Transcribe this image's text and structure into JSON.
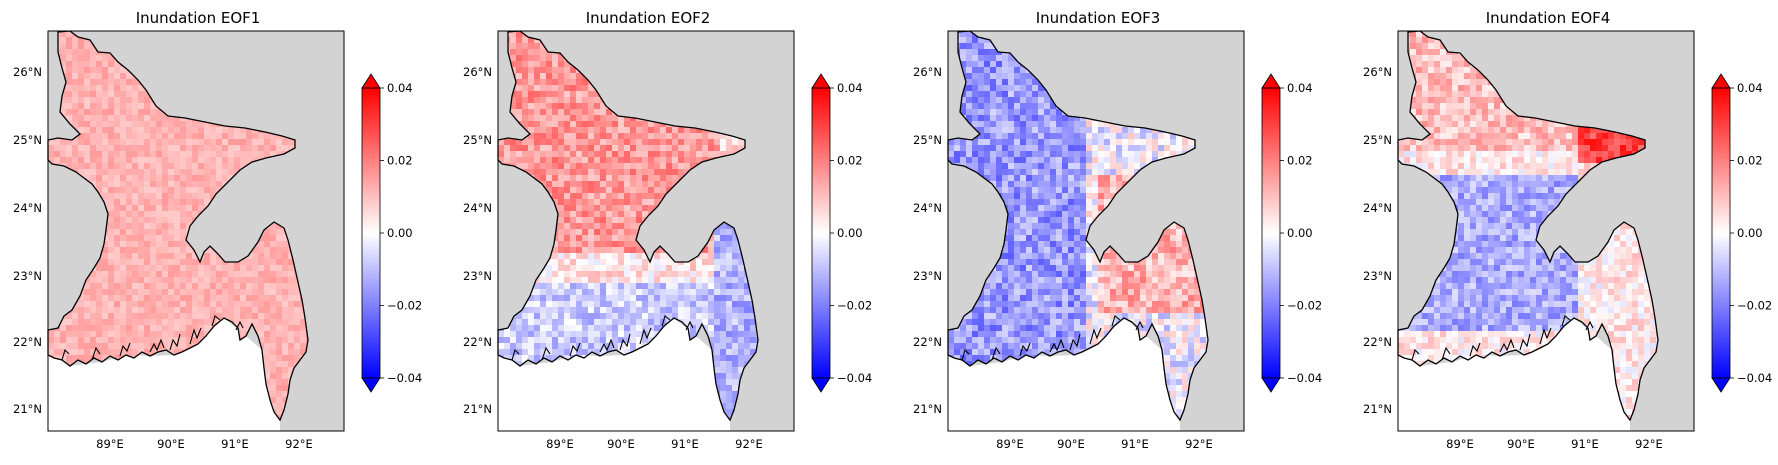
{
  "panels": [
    {
      "title": "Inundation EOF1",
      "pattern": "eof1"
    },
    {
      "title": "Inundation EOF2",
      "pattern": "eof2"
    },
    {
      "title": "Inundation EOF3",
      "pattern": "eof3"
    },
    {
      "title": "Inundation EOF4",
      "pattern": "eof4"
    }
  ],
  "y_ticks": [
    "26°N",
    "25°N",
    "24°N",
    "23°N",
    "22°N",
    "21°N"
  ],
  "x_ticks": [
    "89°E",
    "90°E",
    "91°E",
    "92°E"
  ],
  "colorbar": {
    "ticks": [
      "0.04",
      "0.02",
      "0.00",
      "−0.02",
      "−0.04"
    ],
    "min": -0.04,
    "max": 0.04,
    "extend": "both",
    "colors": {
      "low": "#0000ff",
      "mid": "#ffffff",
      "high": "#ff0000"
    }
  },
  "colors": {
    "ocean_land_mask": "#d3d3d3",
    "coastline": "#000000"
  }
}
